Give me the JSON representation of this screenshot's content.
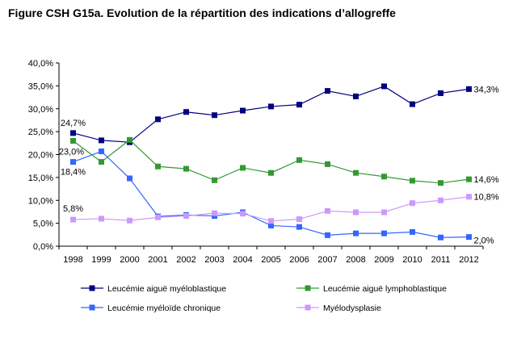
{
  "chart_data": {
    "type": "line",
    "title": "Figure CSH G15a. Evolution de la répartition des indications d’allogreffe",
    "xlabel": "",
    "ylabel": "",
    "x": [
      "1998",
      "1999",
      "2000",
      "2001",
      "2002",
      "2003",
      "2004",
      "2005",
      "2006",
      "2007",
      "2008",
      "2009",
      "2010",
      "2011",
      "2012"
    ],
    "ylim": [
      0,
      40
    ],
    "yticks": [
      0,
      5,
      10,
      15,
      20,
      25,
      30,
      35,
      40
    ],
    "ytick_labels": [
      "0,0%",
      "5,0%",
      "10,0%",
      "15,0%",
      "20,0%",
      "25,0%",
      "30,0%",
      "35,0%",
      "40,0%"
    ],
    "grid": false,
    "legend_position": "bottom",
    "series": [
      {
        "name": "Leucémie aiguë myéloblastique",
        "color": "#000080",
        "values": [
          24.7,
          23.1,
          22.7,
          27.7,
          29.3,
          28.6,
          29.6,
          30.5,
          30.9,
          33.9,
          32.7,
          34.9,
          31.0,
          33.4,
          34.3
        ]
      },
      {
        "name": "Leucémie aiguë lymphoblastique",
        "color": "#339933",
        "values": [
          23.0,
          18.4,
          23.2,
          17.4,
          16.9,
          14.4,
          17.1,
          16.0,
          18.8,
          17.9,
          16.0,
          15.2,
          14.3,
          13.8,
          14.6
        ]
      },
      {
        "name": "Leucémie myéloïde chronique",
        "color": "#3366ff",
        "values": [
          18.4,
          20.7,
          14.8,
          6.5,
          6.8,
          6.6,
          7.4,
          4.5,
          4.2,
          2.4,
          2.8,
          2.8,
          3.1,
          1.9,
          2.0
        ]
      },
      {
        "name": "Myélodysplasie",
        "color": "#cc99ff",
        "values": [
          5.8,
          6.0,
          5.6,
          6.3,
          6.6,
          7.2,
          7.1,
          5.5,
          5.9,
          7.7,
          7.4,
          7.4,
          9.4,
          10.0,
          10.8
        ]
      }
    ],
    "annotations": [
      {
        "series": 0,
        "index": 0,
        "text": "24,7%"
      },
      {
        "series": 1,
        "index": 0,
        "text": "23,0%"
      },
      {
        "series": 2,
        "index": 0,
        "text": "18,4%"
      },
      {
        "series": 3,
        "index": 0,
        "text": "5,8%"
      },
      {
        "series": 0,
        "index": 14,
        "text": "34,3%"
      },
      {
        "series": 1,
        "index": 14,
        "text": "14,6%"
      },
      {
        "series": 3,
        "index": 14,
        "text": "10,8%"
      },
      {
        "series": 2,
        "index": 14,
        "text": "2,0%"
      }
    ]
  }
}
